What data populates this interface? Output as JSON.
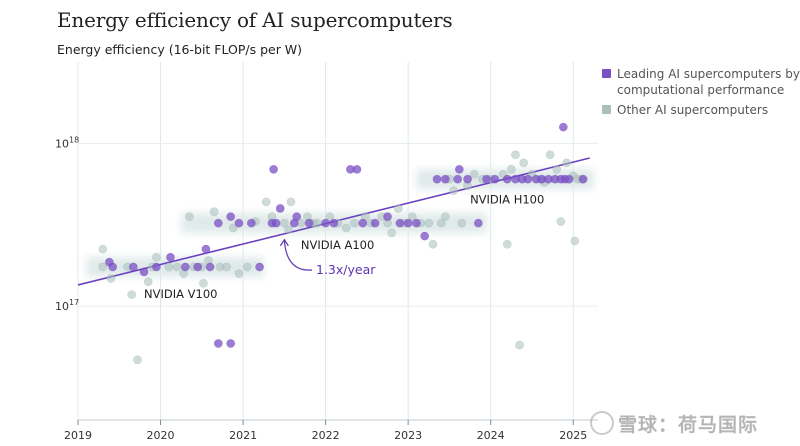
{
  "page": {
    "title": "Energy efficiency of AI supercomputers",
    "subtitle": "Energy efficiency (16-bit FLOP/s per W)"
  },
  "legend": [
    {
      "label": "Leading AI supercomputers by computational performance",
      "color": "#7a4fc4"
    },
    {
      "label": "Other AI supercomputers",
      "color": "#a9bfbb"
    }
  ],
  "watermark": "雪球：荷马国际",
  "chart_data": {
    "type": "scatter",
    "title": "Energy efficiency of AI supercomputers",
    "ylabel": "Energy efficiency (16-bit FLOP/s per W)",
    "xlabel": "",
    "xlim": [
      2019.0,
      2025.3
    ],
    "ylim_log10": [
      16.3,
      18.5
    ],
    "yscale": "log",
    "x_ticks": [
      2019,
      2020,
      2021,
      2022,
      2023,
      2024,
      2025
    ],
    "y_ticks": [
      {
        "log10": 17,
        "label": "10^17"
      },
      {
        "log10": 18,
        "label": "10^18"
      }
    ],
    "grid": true,
    "legend_position": "top-right",
    "trend": {
      "label": "1.3x/year",
      "x0": 2019.0,
      "log10_y0": 17.13,
      "x1": 2025.2,
      "log10_y1": 17.91
    },
    "annotations": [
      {
        "text": "NVIDIA V100",
        "x": 2019.8,
        "log10_y": 17.05
      },
      {
        "text": "NVIDIA A100",
        "x": 2021.7,
        "log10_y": 17.35
      },
      {
        "text": "NVIDIA H100",
        "x": 2023.75,
        "log10_y": 17.63
      }
    ],
    "bands": [
      {
        "x0": 2019.1,
        "x1": 2021.25,
        "log10_y": 17.24
      },
      {
        "x0": 2020.25,
        "x1": 2023.95,
        "log10_y": 17.51
      },
      {
        "x0": 2023.1,
        "x1": 2025.25,
        "log10_y": 17.78
      }
    ],
    "series": [
      {
        "name": "Leading AI supercomputers by computational performance",
        "color": "#7a4fc4",
        "points": [
          [
            2019.38,
            17.27
          ],
          [
            2019.42,
            17.24
          ],
          [
            2019.67,
            17.24
          ],
          [
            2019.8,
            17.21
          ],
          [
            2019.95,
            17.24
          ],
          [
            2020.12,
            17.3
          ],
          [
            2020.3,
            17.24
          ],
          [
            2020.45,
            17.24
          ],
          [
            2020.55,
            17.35
          ],
          [
            2020.6,
            17.24
          ],
          [
            2020.7,
            16.77
          ],
          [
            2020.85,
            16.77
          ],
          [
            2020.7,
            17.51
          ],
          [
            2020.85,
            17.55
          ],
          [
            2020.95,
            17.51
          ],
          [
            2021.1,
            17.51
          ],
          [
            2021.2,
            17.24
          ],
          [
            2021.37,
            17.84
          ],
          [
            2021.35,
            17.51
          ],
          [
            2021.4,
            17.51
          ],
          [
            2021.45,
            17.6
          ],
          [
            2021.62,
            17.51
          ],
          [
            2021.65,
            17.55
          ],
          [
            2021.8,
            17.51
          ],
          [
            2022.0,
            17.51
          ],
          [
            2022.1,
            17.51
          ],
          [
            2022.3,
            17.84
          ],
          [
            2022.38,
            17.84
          ],
          [
            2022.45,
            17.51
          ],
          [
            2022.6,
            17.51
          ],
          [
            2022.75,
            17.55
          ],
          [
            2022.9,
            17.51
          ],
          [
            2023.0,
            17.51
          ],
          [
            2023.1,
            17.51
          ],
          [
            2023.2,
            17.43
          ],
          [
            2023.35,
            17.78
          ],
          [
            2023.45,
            17.78
          ],
          [
            2023.6,
            17.78
          ],
          [
            2023.62,
            17.84
          ],
          [
            2023.72,
            17.78
          ],
          [
            2023.85,
            17.51
          ],
          [
            2023.95,
            17.78
          ],
          [
            2024.05,
            17.78
          ],
          [
            2024.2,
            17.78
          ],
          [
            2024.3,
            17.78
          ],
          [
            2024.38,
            17.78
          ],
          [
            2024.45,
            17.78
          ],
          [
            2024.55,
            17.78
          ],
          [
            2024.62,
            17.78
          ],
          [
            2024.7,
            17.78
          ],
          [
            2024.78,
            17.78
          ],
          [
            2024.85,
            17.78
          ],
          [
            2024.88,
            18.1
          ],
          [
            2024.9,
            17.78
          ],
          [
            2024.95,
            17.78
          ],
          [
            2025.12,
            17.78
          ]
        ]
      },
      {
        "name": "Other AI supercomputers",
        "color": "#a9bfbb",
        "points": [
          [
            2019.3,
            17.35
          ],
          [
            2019.3,
            17.24
          ],
          [
            2019.4,
            17.17
          ],
          [
            2019.6,
            17.24
          ],
          [
            2019.65,
            17.07
          ],
          [
            2019.72,
            16.67
          ],
          [
            2019.85,
            17.15
          ],
          [
            2019.9,
            17.24
          ],
          [
            2019.95,
            17.3
          ],
          [
            2020.1,
            17.24
          ],
          [
            2020.2,
            17.24
          ],
          [
            2020.28,
            17.2
          ],
          [
            2020.35,
            17.55
          ],
          [
            2020.4,
            17.24
          ],
          [
            2020.5,
            17.24
          ],
          [
            2020.52,
            17.14
          ],
          [
            2020.58,
            17.28
          ],
          [
            2020.65,
            17.58
          ],
          [
            2020.72,
            17.24
          ],
          [
            2020.8,
            17.24
          ],
          [
            2020.88,
            17.48
          ],
          [
            2020.95,
            17.2
          ],
          [
            2021.05,
            17.24
          ],
          [
            2021.15,
            17.52
          ],
          [
            2021.28,
            17.64
          ],
          [
            2021.35,
            17.55
          ],
          [
            2021.5,
            17.51
          ],
          [
            2021.55,
            17.47
          ],
          [
            2021.58,
            17.64
          ],
          [
            2021.7,
            17.51
          ],
          [
            2021.78,
            17.55
          ],
          [
            2021.85,
            17.51
          ],
          [
            2021.9,
            17.51
          ],
          [
            2022.05,
            17.55
          ],
          [
            2022.15,
            17.51
          ],
          [
            2022.25,
            17.48
          ],
          [
            2022.35,
            17.51
          ],
          [
            2022.48,
            17.55
          ],
          [
            2022.55,
            17.51
          ],
          [
            2022.68,
            17.55
          ],
          [
            2022.75,
            17.51
          ],
          [
            2022.8,
            17.45
          ],
          [
            2022.88,
            17.6
          ],
          [
            2022.95,
            17.51
          ],
          [
            2023.05,
            17.55
          ],
          [
            2023.15,
            17.51
          ],
          [
            2023.25,
            17.51
          ],
          [
            2023.3,
            17.38
          ],
          [
            2023.4,
            17.51
          ],
          [
            2023.45,
            17.55
          ],
          [
            2023.5,
            17.78
          ],
          [
            2023.55,
            17.71
          ],
          [
            2023.65,
            17.51
          ],
          [
            2023.72,
            17.74
          ],
          [
            2023.8,
            17.81
          ],
          [
            2023.9,
            17.78
          ],
          [
            2024.0,
            17.78
          ],
          [
            2024.15,
            17.81
          ],
          [
            2024.2,
            17.38
          ],
          [
            2024.25,
            17.84
          ],
          [
            2024.3,
            17.93
          ],
          [
            2024.35,
            16.76
          ],
          [
            2024.4,
            17.88
          ],
          [
            2024.5,
            17.81
          ],
          [
            2024.6,
            17.78
          ],
          [
            2024.65,
            17.76
          ],
          [
            2024.72,
            17.93
          ],
          [
            2024.8,
            17.84
          ],
          [
            2024.85,
            17.52
          ],
          [
            2024.92,
            17.88
          ],
          [
            2025.0,
            17.8
          ],
          [
            2025.05,
            17.78
          ],
          [
            2025.1,
            17.78
          ],
          [
            2025.02,
            17.4
          ]
        ]
      }
    ]
  }
}
